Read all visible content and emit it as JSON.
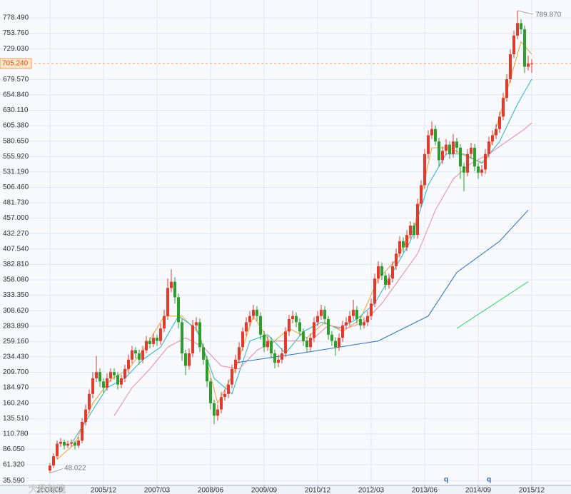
{
  "chart_data": {
    "type": "candlestick",
    "xlim": [
      -14,
      146
    ],
    "xticks": [
      {
        "value": 0,
        "label": "2004/09"
      },
      {
        "value": 15,
        "label": "2005/12"
      },
      {
        "value": 30,
        "label": "2007/03"
      },
      {
        "value": 45,
        "label": "2008/06"
      },
      {
        "value": 60,
        "label": "2009/09"
      },
      {
        "value": 75,
        "label": "2010/12"
      },
      {
        "value": 90,
        "label": "2012/03"
      },
      {
        "value": 105,
        "label": "2013/06"
      },
      {
        "value": 120,
        "label": "2014/09"
      },
      {
        "value": 135,
        "label": "2015/12"
      }
    ],
    "ylim": [
      28.1,
      807.1
    ],
    "yticks": [
      {
        "value": 35.59,
        "label": "35.590"
      },
      {
        "value": 61.32,
        "label": "61.320"
      },
      {
        "value": 86.05,
        "label": "86.050"
      },
      {
        "value": 110.78,
        "label": "110.780"
      },
      {
        "value": 135.51,
        "label": "135.510"
      },
      {
        "value": 160.24,
        "label": "160.240"
      },
      {
        "value": 184.97,
        "label": "184.970"
      },
      {
        "value": 209.7,
        "label": "209.700"
      },
      {
        "value": 234.43,
        "label": "234.430"
      },
      {
        "value": 259.16,
        "label": "259.160"
      },
      {
        "value": 283.89,
        "label": "283.890"
      },
      {
        "value": 308.62,
        "label": "308.620"
      },
      {
        "value": 333.35,
        "label": "333.350"
      },
      {
        "value": 358.08,
        "label": "358.080"
      },
      {
        "value": 382.81,
        "label": "382.810"
      },
      {
        "value": 407.54,
        "label": "407.540"
      },
      {
        "value": 432.27,
        "label": "432.270"
      },
      {
        "value": 457,
        "label": "457.000"
      },
      {
        "value": 481.73,
        "label": "481.730"
      },
      {
        "value": 506.46,
        "label": "506.460"
      },
      {
        "value": 531.19,
        "label": "531.190"
      },
      {
        "value": 555.92,
        "label": "555.920"
      },
      {
        "value": 580.65,
        "label": "580.650"
      },
      {
        "value": 605.38,
        "label": "605.380"
      },
      {
        "value": 630.11,
        "label": "630.110"
      },
      {
        "value": 654.84,
        "label": "654.840"
      },
      {
        "value": 679.57,
        "label": "679.570"
      },
      {
        "value": 729.03,
        "label": "729.030"
      },
      {
        "value": 753.76,
        "label": "753.760"
      },
      {
        "value": 778.49,
        "label": "778.490"
      }
    ],
    "grid": true,
    "up_color": "#e23b2e",
    "down_color": "#2c9e2c",
    "candles": [
      [
        0,
        52,
        64,
        48.022,
        60
      ],
      [
        1,
        60,
        80,
        56,
        75
      ],
      [
        2,
        75,
        100,
        70,
        95
      ],
      [
        3,
        95,
        104,
        90,
        98
      ],
      [
        4,
        98,
        102,
        86,
        92
      ],
      [
        5,
        92,
        100,
        88,
        95
      ],
      [
        6,
        95,
        102,
        90,
        97
      ],
      [
        7,
        97,
        100,
        86,
        92
      ],
      [
        8,
        92,
        106,
        88,
        100
      ],
      [
        9,
        100,
        136,
        96,
        130
      ],
      [
        10,
        130,
        158,
        124,
        150
      ],
      [
        11,
        150,
        182,
        144,
        175
      ],
      [
        12,
        175,
        210,
        168,
        200
      ],
      [
        13,
        200,
        236,
        194,
        210
      ],
      [
        14,
        210,
        216,
        186,
        195
      ],
      [
        15,
        195,
        200,
        176,
        185
      ],
      [
        16,
        185,
        208,
        180,
        200
      ],
      [
        17,
        200,
        216,
        194,
        210
      ],
      [
        18,
        210,
        216,
        198,
        205
      ],
      [
        19,
        205,
        210,
        182,
        190
      ],
      [
        20,
        190,
        206,
        184,
        200
      ],
      [
        21,
        200,
        222,
        194,
        215
      ],
      [
        22,
        215,
        238,
        208,
        230
      ],
      [
        23,
        230,
        252,
        224,
        245
      ],
      [
        24,
        245,
        250,
        232,
        240
      ],
      [
        25,
        240,
        246,
        222,
        230
      ],
      [
        26,
        230,
        252,
        224,
        245
      ],
      [
        27,
        245,
        268,
        240,
        260
      ],
      [
        28,
        260,
        266,
        248,
        255
      ],
      [
        29,
        255,
        272,
        250,
        265
      ],
      [
        30,
        265,
        270,
        252,
        260
      ],
      [
        31,
        260,
        288,
        254,
        280
      ],
      [
        32,
        280,
        310,
        274,
        300
      ],
      [
        33,
        300,
        360,
        294,
        345
      ],
      [
        34,
        345,
        375,
        338,
        355
      ],
      [
        35,
        355,
        362,
        320,
        330
      ],
      [
        36,
        330,
        336,
        280,
        290
      ],
      [
        37,
        290,
        296,
        228,
        240
      ],
      [
        38,
        240,
        246,
        205,
        220
      ],
      [
        39,
        220,
        248,
        214,
        240
      ],
      [
        40,
        240,
        294,
        234,
        285
      ],
      [
        41,
        285,
        298,
        278,
        290
      ],
      [
        42,
        290,
        296,
        242,
        250
      ],
      [
        43,
        250,
        256,
        222,
        230
      ],
      [
        44,
        230,
        236,
        186,
        195
      ],
      [
        45,
        195,
        200,
        150,
        160
      ],
      [
        46,
        160,
        166,
        126,
        140
      ],
      [
        47,
        140,
        158,
        132,
        150
      ],
      [
        48,
        150,
        178,
        144,
        170
      ],
      [
        49,
        170,
        182,
        164,
        175
      ],
      [
        50,
        175,
        198,
        168,
        190
      ],
      [
        51,
        190,
        222,
        184,
        215
      ],
      [
        52,
        215,
        238,
        208,
        230
      ],
      [
        53,
        230,
        258,
        224,
        250
      ],
      [
        54,
        250,
        282,
        244,
        275
      ],
      [
        55,
        275,
        298,
        268,
        290
      ],
      [
        56,
        290,
        308,
        284,
        300
      ],
      [
        57,
        300,
        318,
        294,
        310
      ],
      [
        58,
        310,
        316,
        292,
        300
      ],
      [
        59,
        300,
        306,
        262,
        270
      ],
      [
        60,
        270,
        276,
        242,
        250
      ],
      [
        61,
        250,
        268,
        244,
        260
      ],
      [
        62,
        260,
        266,
        232,
        240
      ],
      [
        63,
        240,
        246,
        216,
        225
      ],
      [
        64,
        225,
        238,
        218,
        230
      ],
      [
        65,
        230,
        248,
        224,
        240
      ],
      [
        66,
        240,
        282,
        234,
        275
      ],
      [
        67,
        275,
        302,
        268,
        295
      ],
      [
        68,
        295,
        308,
        288,
        300
      ],
      [
        69,
        300,
        306,
        282,
        290
      ],
      [
        70,
        290,
        296,
        268,
        275
      ],
      [
        71,
        275,
        280,
        252,
        260
      ],
      [
        72,
        260,
        266,
        242,
        250
      ],
      [
        73,
        250,
        272,
        244,
        265
      ],
      [
        74,
        265,
        298,
        258,
        290
      ],
      [
        75,
        290,
        308,
        284,
        300
      ],
      [
        76,
        300,
        318,
        294,
        310
      ],
      [
        77,
        310,
        316,
        288,
        295
      ],
      [
        78,
        295,
        300,
        262,
        270
      ],
      [
        79,
        270,
        276,
        252,
        260
      ],
      [
        80,
        260,
        266,
        236,
        250
      ],
      [
        81,
        250,
        272,
        244,
        265
      ],
      [
        82,
        265,
        292,
        258,
        285
      ],
      [
        83,
        285,
        298,
        280,
        290
      ],
      [
        84,
        290,
        308,
        284,
        300
      ],
      [
        85,
        300,
        326,
        294,
        310
      ],
      [
        86,
        310,
        316,
        288,
        295
      ],
      [
        87,
        295,
        300,
        278,
        285
      ],
      [
        88,
        285,
        298,
        280,
        290
      ],
      [
        89,
        290,
        308,
        284,
        300
      ],
      [
        90,
        300,
        328,
        294,
        320
      ],
      [
        91,
        320,
        368,
        314,
        360
      ],
      [
        92,
        360,
        388,
        352,
        380
      ],
      [
        93,
        380,
        386,
        358,
        365
      ],
      [
        94,
        365,
        370,
        342,
        350
      ],
      [
        95,
        350,
        368,
        344,
        360
      ],
      [
        96,
        360,
        388,
        354,
        380
      ],
      [
        97,
        380,
        408,
        374,
        400
      ],
      [
        98,
        400,
        428,
        394,
        420
      ],
      [
        99,
        420,
        426,
        402,
        410
      ],
      [
        100,
        410,
        438,
        404,
        430
      ],
      [
        101,
        430,
        452,
        424,
        445
      ],
      [
        102,
        445,
        450,
        424,
        430
      ],
      [
        103,
        430,
        488,
        424,
        480
      ],
      [
        104,
        480,
        518,
        474,
        510
      ],
      [
        105,
        510,
        568,
        504,
        560
      ],
      [
        106,
        560,
        598,
        552,
        590
      ],
      [
        107,
        590,
        612,
        584,
        600
      ],
      [
        108,
        600,
        606,
        574,
        580
      ],
      [
        109,
        580,
        586,
        540,
        550
      ],
      [
        110,
        550,
        572,
        544,
        565
      ],
      [
        111,
        565,
        584,
        558,
        575
      ],
      [
        112,
        575,
        580,
        552,
        560
      ],
      [
        113,
        560,
        592,
        554,
        580
      ],
      [
        114,
        580,
        586,
        562,
        570
      ],
      [
        115,
        570,
        576,
        520,
        540
      ],
      [
        116,
        540,
        546,
        500,
        530
      ],
      [
        117,
        530,
        568,
        524,
        560
      ],
      [
        118,
        560,
        578,
        554,
        570
      ],
      [
        119,
        570,
        576,
        532,
        540
      ],
      [
        120,
        540,
        546,
        520,
        530
      ],
      [
        121,
        530,
        542,
        524,
        535
      ],
      [
        122,
        535,
        568,
        528,
        560
      ],
      [
        123,
        560,
        588,
        554,
        580
      ],
      [
        124,
        580,
        598,
        574,
        590
      ],
      [
        125,
        590,
        608,
        584,
        600
      ],
      [
        126,
        600,
        628,
        594,
        620
      ],
      [
        127,
        620,
        658,
        614,
        650
      ],
      [
        128,
        650,
        688,
        644,
        680
      ],
      [
        129,
        680,
        728,
        674,
        720
      ],
      [
        130,
        720,
        758,
        714,
        750
      ],
      [
        131,
        750,
        789.87,
        744,
        770
      ],
      [
        132,
        770,
        776,
        752,
        760
      ],
      [
        133,
        760,
        766,
        690,
        700
      ],
      [
        134,
        700,
        718,
        694,
        705
      ],
      [
        135,
        705,
        712,
        690,
        705.24
      ]
    ],
    "series": [
      {
        "color": "#f0a030",
        "x": [
          2,
          7,
          12,
          17,
          22,
          27,
          32,
          37,
          42,
          47,
          52,
          57,
          62,
          67,
          72,
          77,
          82,
          87,
          92,
          97,
          102,
          107,
          112,
          117,
          122,
          127,
          132,
          135
        ],
        "values": [
          70,
          95,
          160,
          198,
          215,
          252,
          300,
          300,
          270,
          160,
          215,
          300,
          255,
          280,
          265,
          290,
          275,
          295,
          360,
          390,
          440,
          570,
          570,
          555,
          545,
          640,
          740,
          720
        ]
      },
      {
        "color": "#28b4c8",
        "x": [
          6,
          11,
          16,
          21,
          26,
          31,
          36,
          41,
          46,
          51,
          56,
          61,
          66,
          71,
          76,
          81,
          86,
          91,
          96,
          101,
          106,
          111,
          116,
          121,
          126,
          131,
          135
        ],
        "values": [
          95,
          140,
          185,
          200,
          230,
          250,
          300,
          280,
          200,
          175,
          260,
          270,
          240,
          275,
          290,
          280,
          295,
          320,
          370,
          420,
          510,
          560,
          560,
          545,
          580,
          640,
          680
        ]
      },
      {
        "color": "#e88aa0",
        "x": [
          18,
          23,
          28,
          33,
          38,
          43,
          48,
          53,
          58,
          63,
          68,
          73,
          78,
          83,
          88,
          93,
          98,
          103,
          108,
          113,
          118,
          123,
          128,
          133,
          135
        ],
        "values": [
          140,
          185,
          215,
          250,
          265,
          250,
          220,
          215,
          245,
          260,
          260,
          260,
          285,
          280,
          290,
          320,
          360,
          400,
          470,
          520,
          545,
          560,
          580,
          600,
          610
        ]
      },
      {
        "color": "#2a6fb8",
        "x": [
          52,
          70,
          92,
          106,
          114,
          126,
          134
        ],
        "values": [
          225,
          240,
          260,
          300,
          370,
          420,
          470
        ]
      },
      {
        "color": "#3ccf70",
        "x": [
          114,
          134
        ],
        "values": [
          280,
          355
        ]
      }
    ],
    "last_price": {
      "value": 705.24,
      "label": "705.240"
    },
    "max_label": {
      "value": 789.87,
      "label": "789.870"
    },
    "min_label": {
      "value": 48.022,
      "label": "48.022"
    },
    "markers": [
      {
        "x": 111,
        "label": "q"
      },
      {
        "x": 123,
        "label": "q"
      }
    ],
    "watermark": "大数跨境"
  }
}
